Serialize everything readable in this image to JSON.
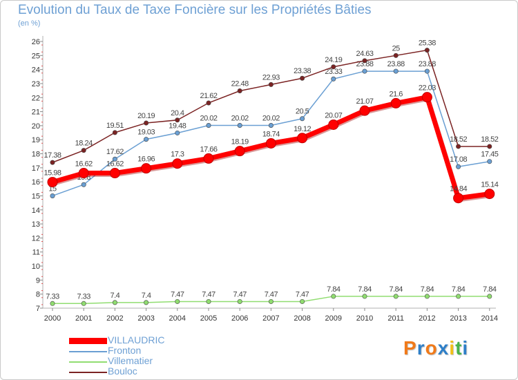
{
  "header": {
    "title": "Evolution du Taux de Taxe Foncière sur les Propriétés Bâties",
    "unit": "(en %)"
  },
  "logo": {
    "text": "Proxiti",
    "colors": [
      "#f07a1a",
      "#2e7fc8",
      "#f07a1a",
      "#2e7fc8",
      "#f0c01a",
      "#49b34a",
      "#2e7fc8"
    ]
  },
  "chart_data": {
    "type": "line",
    "title": "Evolution du Taux de Taxe Foncière sur les Propriétés Bâties",
    "ylabel": "(en %)",
    "xlabel": "",
    "ylim": [
      7,
      26
    ],
    "grid": false,
    "legend_position": "bottom-left",
    "categories": [
      "2000",
      "2001",
      "2002",
      "2003",
      "2004",
      "2005",
      "2006",
      "2007",
      "2008",
      "2009",
      "2010",
      "2011",
      "2012",
      "2013",
      "2014"
    ],
    "yticks": [
      7,
      8,
      9,
      10,
      11,
      12,
      13,
      14,
      15,
      16,
      17,
      18,
      19,
      20,
      21,
      22,
      23,
      24,
      25,
      26
    ],
    "series": [
      {
        "name": "VILLAUDRIC",
        "color": "#ff0000",
        "values": [
          15.98,
          16.62,
          16.62,
          16.96,
          17.3,
          17.66,
          18.19,
          18.74,
          19.12,
          20.07,
          21.07,
          21.6,
          22.03,
          14.84,
          15.14
        ],
        "labels": [
          "15.98",
          "16.62",
          "16.62",
          "16.96",
          "17.3",
          "17.66",
          "18.19",
          "18.74",
          "19.12",
          "20.07",
          "21.07",
          "21.6",
          "22.03",
          "14.84",
          "15.14"
        ]
      },
      {
        "name": "Fronton",
        "color": "#6a9fd3",
        "values": [
          15,
          15.8,
          17.62,
          19.03,
          19.48,
          20.02,
          20.02,
          20.02,
          20.5,
          23.33,
          23.88,
          23.88,
          23.88,
          17.08,
          17.45
        ],
        "labels": [
          "15",
          "15.8",
          "17.62",
          "19.03",
          "19.48",
          "20.02",
          "20.02",
          "20.02",
          "20.5",
          "23.33",
          "23.88",
          "23.88",
          "23.88",
          "17.08",
          "17.45"
        ]
      },
      {
        "name": "Villematier",
        "color": "#90dd70",
        "values": [
          7.33,
          7.33,
          7.4,
          7.4,
          7.47,
          7.47,
          7.47,
          7.47,
          7.47,
          7.84,
          7.84,
          7.84,
          7.84,
          7.84,
          7.84
        ],
        "labels": [
          "7.33",
          "7.33",
          "7.4",
          "7.4",
          "7.47",
          "7.47",
          "7.47",
          "7.47",
          "7.47",
          "7.84",
          "7.84",
          "7.84",
          "7.84",
          "7.84",
          "7.84"
        ]
      },
      {
        "name": "Bouloc",
        "color": "#7b2323",
        "values": [
          17.38,
          18.24,
          19.51,
          20.19,
          20.4,
          21.62,
          22.48,
          22.93,
          23.38,
          24.19,
          24.63,
          25,
          25.38,
          18.52,
          18.52
        ],
        "labels": [
          "17.38",
          "18.24",
          "19.51",
          "20.19",
          "20.4",
          "21.62",
          "22.48",
          "22.93",
          "23.38",
          "24.19",
          "24.63",
          "25",
          "25.38",
          "18.52",
          "18.52"
        ]
      }
    ]
  }
}
